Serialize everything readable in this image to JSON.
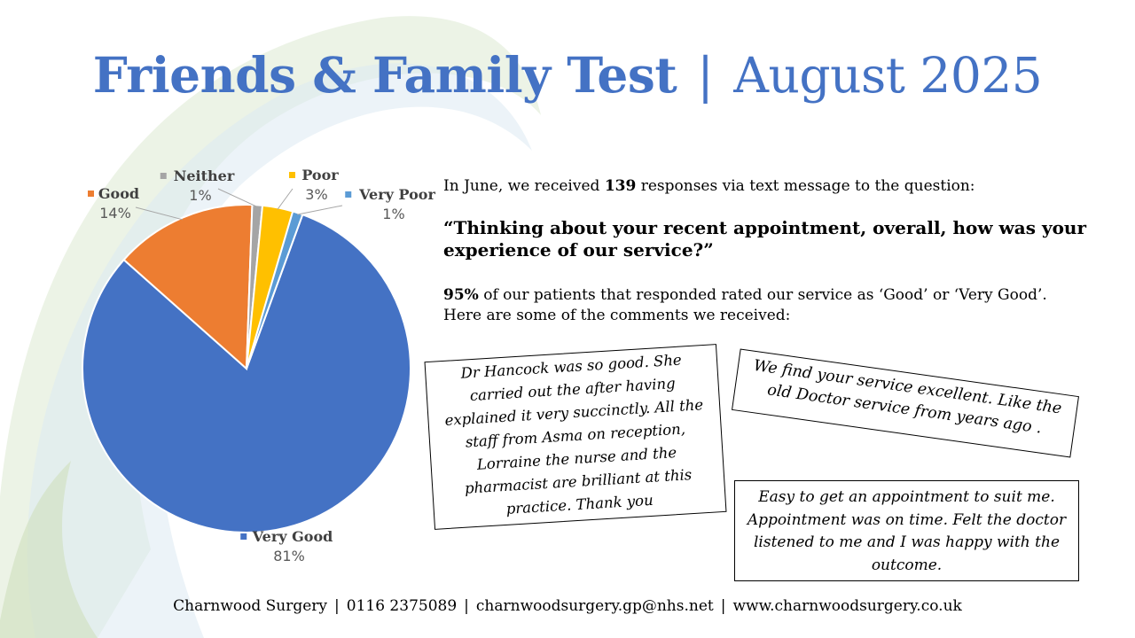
{
  "title": {
    "bold": "Friends & Family Test",
    "separator": "|",
    "month": "August 2025"
  },
  "intro": {
    "before": "In June, we received ",
    "count": "139",
    "after": " responses via text message to the question:"
  },
  "question": "“Thinking about your recent appointment, overall, how was your experience of our service?”",
  "stat": {
    "percent": "95%",
    "rest": " of our patients that responded rated our service as ‘Good’ or ‘Very Good’.",
    "line2": "Here are some of the comments  we received:"
  },
  "comments": [
    "Dr Hancock was so good. She carried out the after having explained it very succinctly. All the staff from Asma on reception, Lorraine the nurse and the pharmacist are brilliant at this practice. Thank you",
    "We find your service excellent. Like the old Doctor service from years ago .",
    "Easy to get an appointment to suit me. Appointment was on time. Felt the doctor listened to me and I was happy with the outcome."
  ],
  "footer": {
    "name": "Charnwood Surgery",
    "phone": "0116 2375089",
    "email": "charnwoodsurgery.gp@nhs.net",
    "website": "www.charnwoodsurgery.co.uk",
    "separator": "|"
  },
  "chart_data": {
    "type": "pie",
    "title": "",
    "slices": [
      {
        "label": "Very Good",
        "percent_label": "81%",
        "value": 81,
        "color": "#4472C4"
      },
      {
        "label": "Good",
        "percent_label": "14%",
        "value": 14,
        "color": "#ED7D31"
      },
      {
        "label": "Neither",
        "percent_label": "1%",
        "value": 1,
        "color": "#A5A5A5"
      },
      {
        "label": "Poor",
        "percent_label": "3%",
        "value": 3,
        "color": "#FFC000"
      },
      {
        "label": "Very Poor",
        "percent_label": "1%",
        "value": 1,
        "color": "#5B9BD5"
      }
    ]
  }
}
